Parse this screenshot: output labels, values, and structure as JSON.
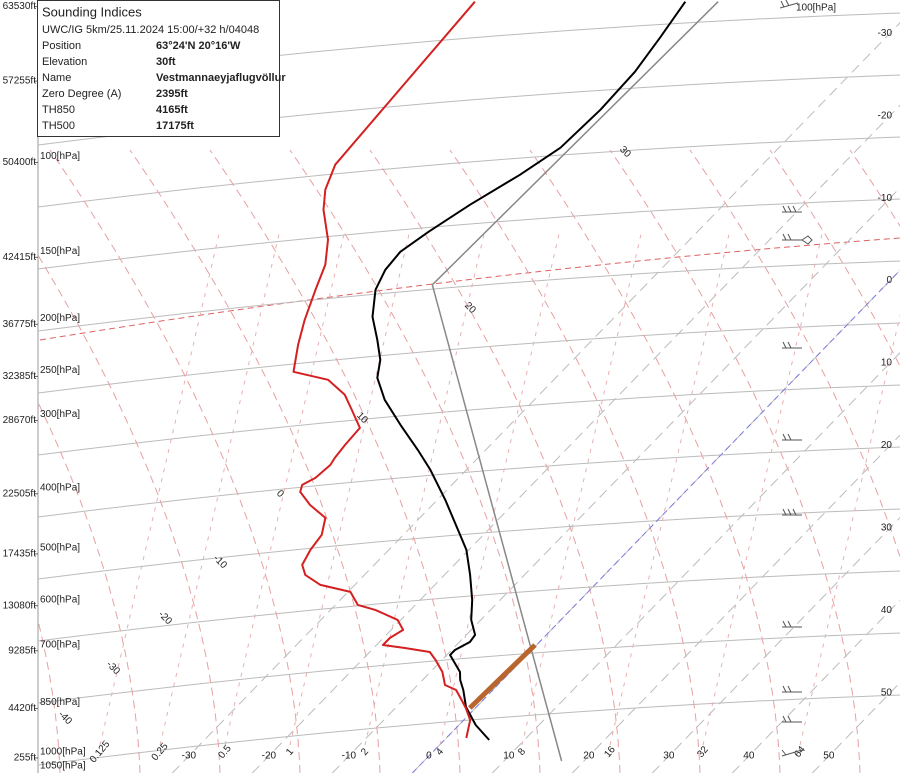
{
  "chart_data": {
    "type": "skewt",
    "ylim": [
      0,
      64000
    ],
    "yticks": [
      {
        "value": 255,
        "label": "255ft"
      },
      {
        "value": 4420,
        "label": "4420ft"
      },
      {
        "value": 9285,
        "label": "9285ft"
      },
      {
        "value": 13080,
        "label": "13080ft"
      },
      {
        "value": 17435,
        "label": "17435ft"
      },
      {
        "value": 22505,
        "label": "22505ft"
      },
      {
        "value": 28670,
        "label": "28670ft"
      },
      {
        "value": 32385,
        "label": "32385ft"
      },
      {
        "value": 36775,
        "label": "36775ft"
      },
      {
        "value": 42415,
        "label": "42415ft"
      },
      {
        "value": 50400,
        "label": "50400ft"
      },
      {
        "value": 57255,
        "label": "57255ft"
      },
      {
        "value": 63530,
        "label": "63530ft"
      }
    ],
    "pressure_labels": [
      "1000[hPa]",
      "850[hPa]",
      "700[hPa]",
      "600[hPa]",
      "500[hPa]",
      "400[hPa]",
      "300[hPa]",
      "250[hPa]",
      "200[hPa]",
      "150[hPa]",
      "100[hPa]"
    ],
    "pressure_label_bottom": "1050[hPa]",
    "pressure_label_top": "100[hPa]",
    "xticks": [
      -30,
      -20,
      -10,
      0,
      10,
      20,
      30,
      40,
      50
    ],
    "highlight_isotherm": 0,
    "adiabat_labels": [
      30,
      20,
      10,
      0,
      -10,
      -20,
      -30,
      -40
    ],
    "mixing_ratio_labels": [
      0.125,
      0.25,
      0.5,
      1,
      2,
      4,
      8,
      16,
      32,
      64
    ],
    "series": [
      {
        "color": "#000000",
        "width": 2,
        "altitude": [
          1769,
          3033,
          4549,
          5981,
          6824,
          7498,
          8930,
          9351,
          10025,
          10615,
          11879,
          13564,
          15670,
          17776,
          19040,
          21988,
          24515,
          26200,
          28307,
          30413,
          32266,
          33783,
          35468,
          37405,
          39680,
          41365,
          42881,
          44566,
          46841,
          49368,
          51643,
          54844,
          58045,
          60910,
          63943
        ],
        "values": [
          5.6,
          2.1,
          -1.3,
          -3.7,
          -5.3,
          -6.3,
          -9.6,
          -9.6,
          -8.7,
          -8.9,
          -11.2,
          -13.5,
          -16.8,
          -20.3,
          -22.9,
          -29.0,
          -34.5,
          -38.5,
          -43.7,
          -48.7,
          -52.3,
          -54.1,
          -56.9,
          -60.3,
          -63.2,
          -64.4,
          -64.7,
          -63.6,
          -61.7,
          -59.1,
          -57.3,
          -56.9,
          -57.2,
          -58.2,
          -59.4
        ]
      },
      {
        "color": "#d42020",
        "width": 2,
        "altitude": [
          1938,
          3454,
          4465,
          5139,
          5981,
          6403,
          7498,
          8509,
          9183,
          9520,
          9772,
          10362,
          11036,
          11879,
          12721,
          13142,
          14238,
          14827,
          15670,
          16512,
          17776,
          19040,
          20472,
          21567,
          22662,
          23252,
          23842,
          24937,
          25526,
          26622,
          28054,
          29570,
          30834,
          32098,
          32772,
          35046,
          37152,
          39680,
          41786,
          43892,
          46420,
          48104,
          50211,
          63943
        ],
        "values": [
          2.5,
          0.8,
          -1.2,
          -2.7,
          -4.6,
          -6.6,
          -8.5,
          -10.8,
          -12.5,
          -16.1,
          -19.2,
          -19.2,
          -18.5,
          -20.4,
          -24.4,
          -27.2,
          -29.7,
          -34.3,
          -37.4,
          -39.0,
          -39.8,
          -40.2,
          -41.8,
          -45.3,
          -48.1,
          -48.7,
          -47.9,
          -47.6,
          -47.9,
          -48.2,
          -48.4,
          -51.6,
          -54.3,
          -58.2,
          -63.5,
          -66.2,
          -68.4,
          -70.7,
          -72.5,
          -75.2,
          -79.4,
          -81.6,
          -83.4,
          -85.7
        ]
      },
      {
        "color": "#888888",
        "width": 1.5,
        "altitude": [
          0,
          40101,
          63943
        ],
        "values": [
          17.2,
          -56.7,
          -55.3
        ]
      },
      {
        "color": "#b8652e",
        "width": 5,
        "altitude": [
          4465,
          9772
        ],
        "values": [
          -0.7,
          -0.2
        ]
      }
    ]
  },
  "info_box": {
    "title": "Sounding Indices",
    "subtitle": "UWC/IG 5km/25.11.2024 15:00/+32 h/04048",
    "rows": [
      [
        "Position",
        "63°24'N 20°16'W"
      ],
      [
        "Elevation",
        "30ft"
      ],
      [
        "Name",
        "Vestmannaeyjaflugvöllur"
      ],
      [
        "Zero Degree (A)",
        "2395ft"
      ],
      [
        "TH850",
        "4165ft"
      ],
      [
        "TH500",
        "17175ft"
      ]
    ]
  }
}
